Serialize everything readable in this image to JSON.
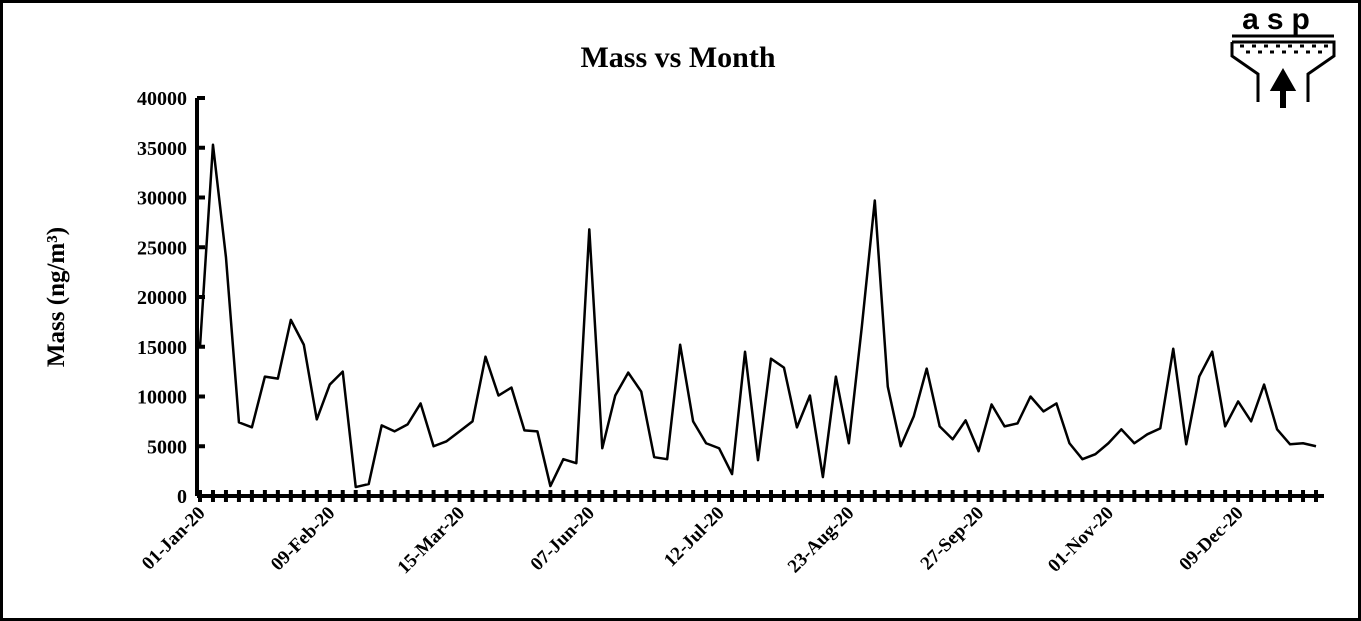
{
  "logo": "asp",
  "chart_data": {
    "type": "line",
    "title": "Mass vs Month",
    "y_label": "Mass (ng/m³)",
    "color": "#000000",
    "categories": [
      "01-Jan-20",
      null,
      null,
      null,
      null,
      null,
      null,
      null,
      null,
      null,
      "09-Feb-20",
      null,
      null,
      null,
      null,
      null,
      null,
      null,
      null,
      null,
      "15-Mar-20",
      null,
      null,
      null,
      null,
      null,
      null,
      null,
      null,
      null,
      "07-Jun-20",
      null,
      null,
      null,
      null,
      null,
      null,
      null,
      null,
      null,
      "12-Jul-20",
      null,
      null,
      null,
      null,
      null,
      null,
      null,
      null,
      null,
      "23-Aug-20",
      null,
      null,
      null,
      null,
      null,
      null,
      null,
      null,
      null,
      "27-Sep-20",
      null,
      null,
      null,
      null,
      null,
      null,
      null,
      null,
      null,
      "01-Nov-20",
      null,
      null,
      null,
      null,
      null,
      null,
      null,
      null,
      null,
      "09-Dec-20",
      null,
      null,
      null,
      null,
      null,
      null
    ],
    "values": [
      15000,
      35300,
      24000,
      7400,
      6900,
      12000,
      11800,
      17700,
      15200,
      7700,
      11200,
      12500,
      900,
      1200,
      7100,
      6500,
      7200,
      9300,
      5000,
      5500,
      6500,
      7500,
      14000,
      10100,
      10900,
      6600,
      6500,
      1000,
      3700,
      3300,
      26800,
      4800,
      10100,
      12400,
      10500,
      3900,
      3700,
      15200,
      7500,
      5300,
      4800,
      2200,
      14500,
      3600,
      13800,
      12900,
      6900,
      10100,
      1900,
      12000,
      5300,
      17000,
      29700,
      11000,
      5000,
      8000,
      12800,
      7000,
      5700,
      7600,
      4500,
      9200,
      7000,
      7300,
      10000,
      8500,
      9300,
      5300,
      3700,
      4200,
      5300,
      6700,
      5300,
      6200,
      6800,
      14800,
      5200,
      12000,
      14500,
      7000,
      9500,
      7500,
      11200,
      6700,
      5200,
      5300,
      5000
    ],
    "ylim": [
      0,
      40000
    ],
    "yticks": [
      0,
      5000,
      10000,
      15000,
      20000,
      25000,
      30000,
      35000,
      40000
    ]
  }
}
